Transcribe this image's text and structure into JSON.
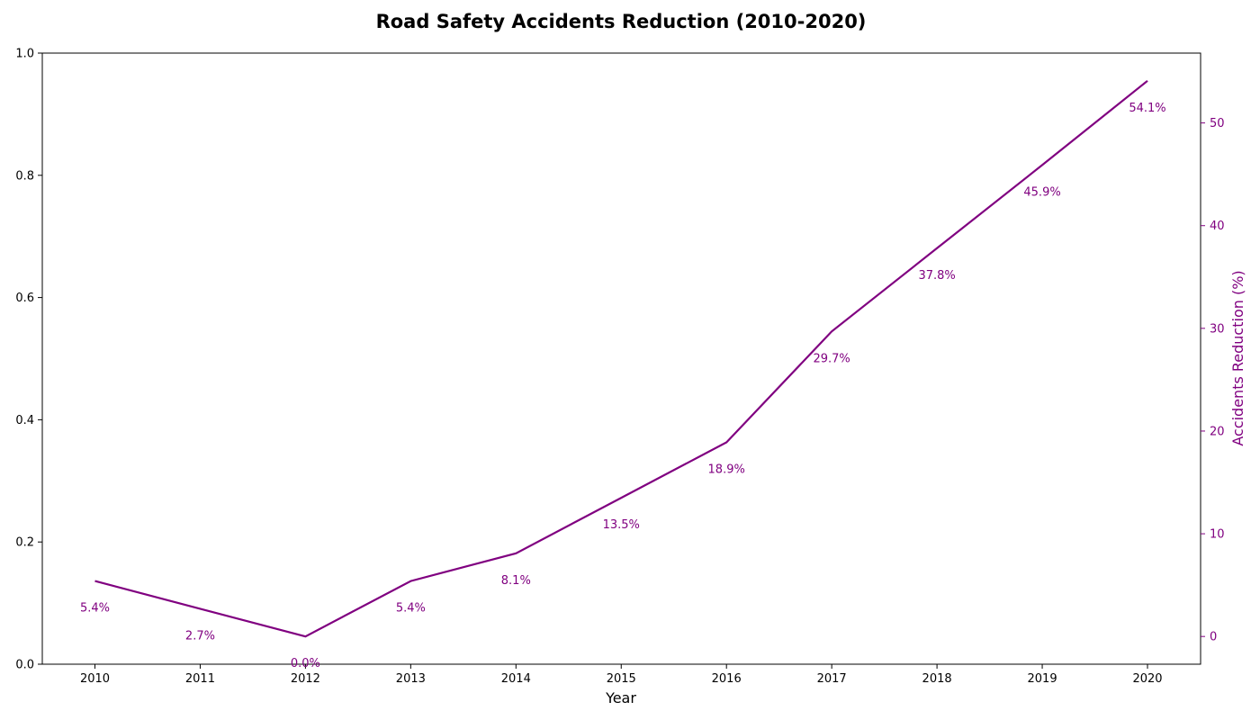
{
  "chart_data": {
    "type": "line",
    "title": "Road Safety Accidents Reduction (2010-2020)",
    "xlabel": "Year",
    "ylabel_right": "Accidents Reduction (%)",
    "categories": [
      "2010",
      "2011",
      "2012",
      "2013",
      "2014",
      "2015",
      "2016",
      "2017",
      "2018",
      "2019",
      "2020"
    ],
    "series": [
      {
        "values": [
          5.4,
          2.7,
          0.0,
          5.4,
          8.1,
          13.5,
          18.9,
          29.7,
          37.8,
          45.9,
          54.1
        ],
        "labels": [
          "5.4%",
          "2.7%",
          "0.0%",
          "5.4%",
          "8.1%",
          "13.5%",
          "18.9%",
          "29.7%",
          "37.8%",
          "45.9%",
          "54.1%"
        ],
        "color": "#800080"
      }
    ],
    "left_axis": {
      "ylim": [
        0,
        1
      ],
      "ticks": [
        "0.0",
        "0.2",
        "0.4",
        "0.6",
        "0.8",
        "1.0"
      ]
    },
    "right_axis": {
      "ylim": [
        -2.7,
        56.8
      ],
      "ticks": [
        "0",
        "10",
        "20",
        "30",
        "40",
        "50"
      ],
      "color": "#800080"
    },
    "grid": false,
    "legend": "none"
  }
}
